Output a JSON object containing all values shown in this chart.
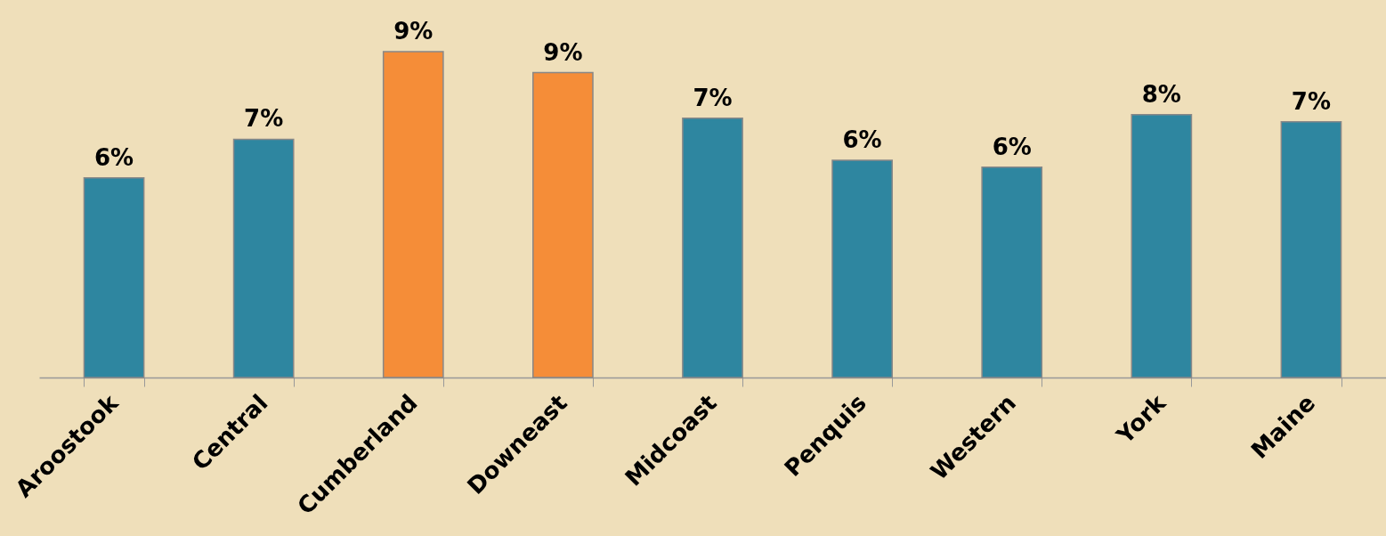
{
  "chart_data": {
    "type": "bar",
    "categories": [
      "Aroostook",
      "Central",
      "Cumberland",
      "Downeast",
      "Midcoast",
      "Penquis",
      "Western",
      "York",
      "Maine"
    ],
    "values": [
      5.7,
      6.8,
      9.3,
      8.7,
      7.4,
      6.2,
      6.0,
      7.5,
      7.3
    ],
    "value_labels": [
      "6%",
      "7%",
      "9%",
      "9%",
      "7%",
      "6%",
      "6%",
      "8%",
      "7%"
    ],
    "colors": [
      "#2e86a0",
      "#2e86a0",
      "#f58d38",
      "#f58d38",
      "#2e86a0",
      "#2e86a0",
      "#2e86a0",
      "#2e86a0",
      "#2e86a0"
    ],
    "data_labels": false
  }
}
